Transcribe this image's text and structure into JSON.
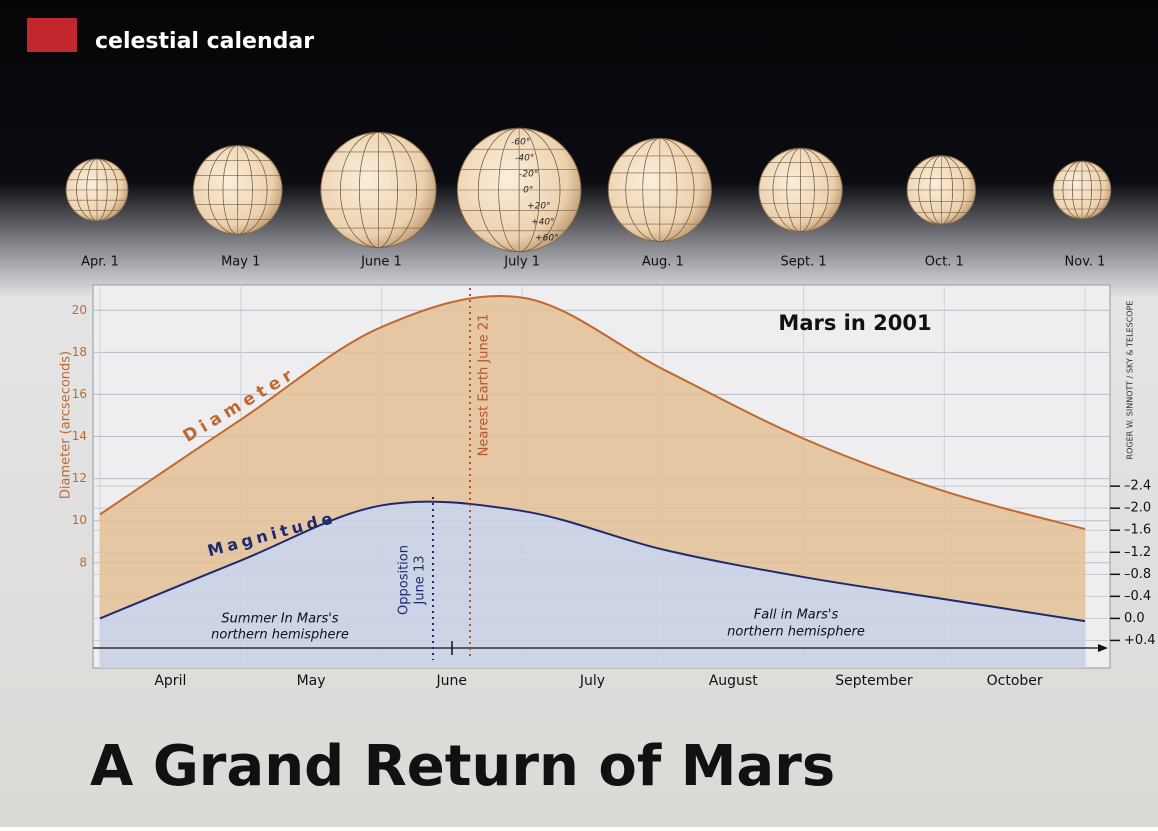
{
  "header": {
    "section": "celestial calendar"
  },
  "chart_data": {
    "type": "line",
    "title": "Mars in 2001",
    "categories": [
      "Apr. 1",
      "May 1",
      "June 1",
      "July 1",
      "Aug. 1",
      "Sept. 1",
      "Oct. 1",
      "Nov. 1"
    ],
    "month_labels": [
      "April",
      "May",
      "June",
      "July",
      "August",
      "September",
      "October"
    ],
    "series": [
      {
        "name": "Diameter",
        "color": "#c0692e",
        "values": [
          10.3,
          14.8,
          19.2,
          20.6,
          17.2,
          13.9,
          11.4,
          9.6
        ]
      },
      {
        "name": "Magnitude",
        "color": "#1f2a6e",
        "axis": "y2",
        "values": [
          0.0,
          -1.05,
          -2.05,
          -1.95,
          -1.25,
          -0.75,
          -0.35,
          0.05
        ]
      }
    ],
    "ylabel": "Diameter (arcseconds)",
    "ylim": [
      3,
      21.2
    ],
    "yticks": [
      8,
      10,
      12,
      14,
      16,
      18,
      20
    ],
    "y2lim": [
      0.9,
      -6.05
    ],
    "y2ticks": [
      {
        "value": -2.4,
        "label": "–2.4"
      },
      {
        "value": -2.0,
        "label": "–2.0"
      },
      {
        "value": -1.6,
        "label": "–1.6"
      },
      {
        "value": -1.2,
        "label": "–1.2"
      },
      {
        "value": -0.8,
        "label": "–0.8"
      },
      {
        "value": -0.4,
        "label": "–0.4"
      },
      {
        "value": 0.0,
        "label": "0.0"
      },
      {
        "value": 0.4,
        "label": "+0.4"
      }
    ],
    "grid": true,
    "annotations": {
      "nearest": "Nearest Earth June 21",
      "opposition": "Opposition",
      "opposition_date": "June 13",
      "summer_1": "Summer In Mars's",
      "summer_2": "northern hemisphere",
      "fall_1": "Fall in Mars's",
      "fall_2": "northern hemisphere"
    },
    "credit": "ROGER W. SINNOTT / SKY & TELESCOPE",
    "globe_latitudes": [
      "-60°",
      "-40°",
      "-20°",
      "0°",
      "+20°",
      "+40°",
      "+60°"
    ]
  },
  "headline": "A Grand Return of Mars"
}
